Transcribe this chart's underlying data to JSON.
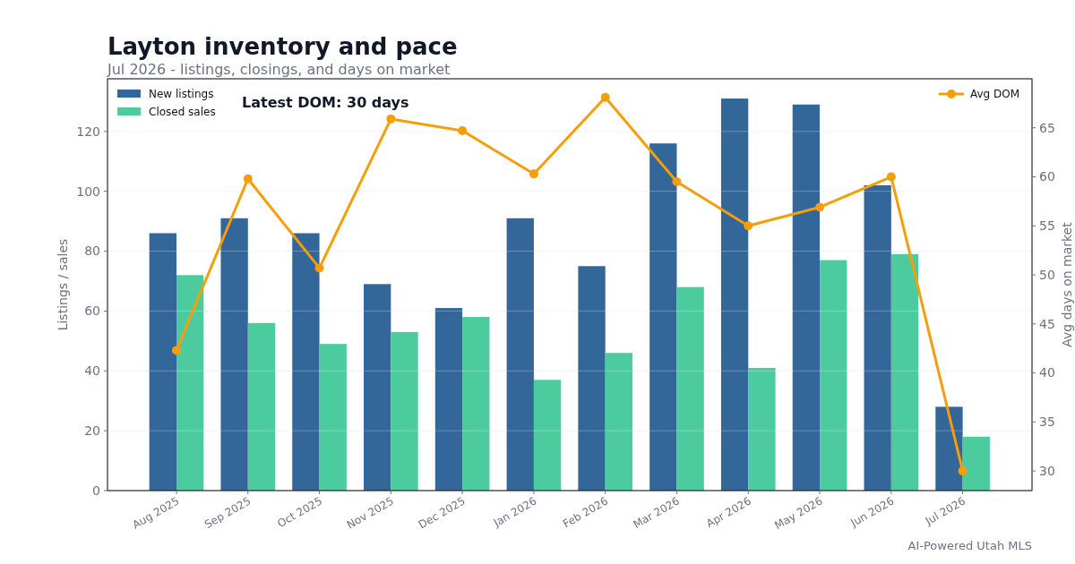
{
  "chart_data": {
    "type": "bar",
    "title": "Layton inventory and pace",
    "subtitle": "Jul 2026 - listings, closings, and days on market",
    "categories": [
      "Aug 2025",
      "Sep 2025",
      "Oct 2025",
      "Nov 2025",
      "Dec 2025",
      "Jan 2026",
      "Feb 2026",
      "Mar 2026",
      "Apr 2026",
      "May 2026",
      "Jun 2026",
      "Jul 2026"
    ],
    "series": [
      {
        "name": "New listings",
        "color": "#336699",
        "values": [
          86,
          91,
          86,
          69,
          61,
          91,
          75,
          116,
          131,
          129,
          102,
          28
        ]
      },
      {
        "name": "Closed sales",
        "color": "#4ccb9f",
        "values": [
          72,
          56,
          49,
          53,
          58,
          37,
          46,
          68,
          41,
          77,
          79,
          18
        ]
      },
      {
        "name": "Avg DOM",
        "type": "line",
        "axis": "y2",
        "color": "#f59e0b",
        "marker": "circle",
        "values": [
          42.3,
          59.8,
          50.7,
          65.9,
          64.7,
          60.3,
          68.1,
          59.5,
          55.0,
          56.9,
          60.0,
          30
        ]
      }
    ],
    "ylabel": "Listings / sales",
    "y2label": "Avg days on market",
    "ylim": [
      0,
      137.6
    ],
    "yticks": [
      0,
      20,
      40,
      60,
      80,
      100,
      120
    ],
    "y2lim": [
      28,
      70
    ],
    "y2ticks": [
      30,
      35,
      40,
      45,
      50,
      55,
      60,
      65
    ],
    "grid": "y",
    "legend": "top left",
    "annotations": [
      "Latest DOM: 30 days",
      "AI-Powered Utah MLS"
    ]
  }
}
